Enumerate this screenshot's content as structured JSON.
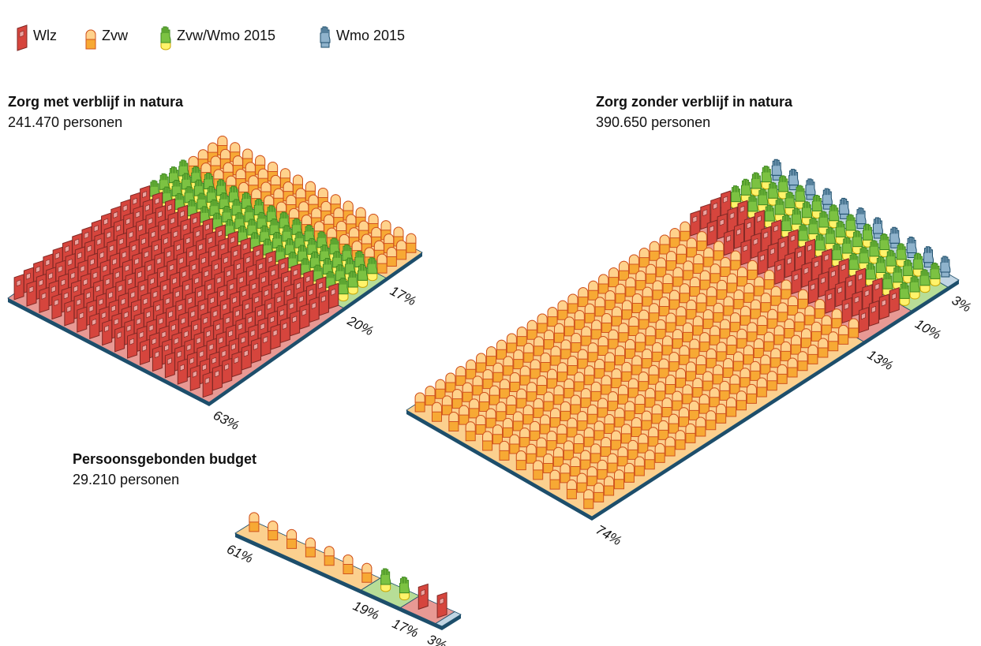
{
  "legend": [
    {
      "name": "Wlz",
      "color": "#d6453d"
    },
    {
      "name": "Zvw",
      "color": "#f7a934"
    },
    {
      "name": "Zvw/Wmo 2015",
      "color": "#7cc242"
    },
    {
      "name": "Wmo 2015",
      "color": "#8fb3cc"
    }
  ],
  "chart_data": [
    {
      "type": "unit",
      "title": "Zorg met verblijf in natura",
      "subtitle": "241.470 personen",
      "categories": [
        "Wlz",
        "Zvw/Wmo 2015",
        "Zvw"
      ],
      "values": [
        63,
        20,
        17
      ],
      "value_labels": [
        "63%",
        "20%",
        "17%"
      ]
    },
    {
      "type": "unit",
      "title": "Zorg zonder verblijf in natura",
      "subtitle": "390.650 personen",
      "categories": [
        "Zvw",
        "Wlz",
        "Zvw/Wmo 2015",
        "Wmo 2015"
      ],
      "values": [
        74,
        13,
        10,
        3
      ],
      "value_labels": [
        "74%",
        "13%",
        "10%",
        "3%"
      ]
    },
    {
      "type": "unit",
      "title": "Persoonsgebonden budget",
      "subtitle": "29.210 personen",
      "categories": [
        "Zvw",
        "Zvw/Wmo 2015",
        "Wlz",
        "Wmo 2015"
      ],
      "values": [
        61,
        19,
        17,
        3
      ],
      "value_labels": [
        "61%",
        "19%",
        "17%",
        "3%"
      ]
    }
  ]
}
